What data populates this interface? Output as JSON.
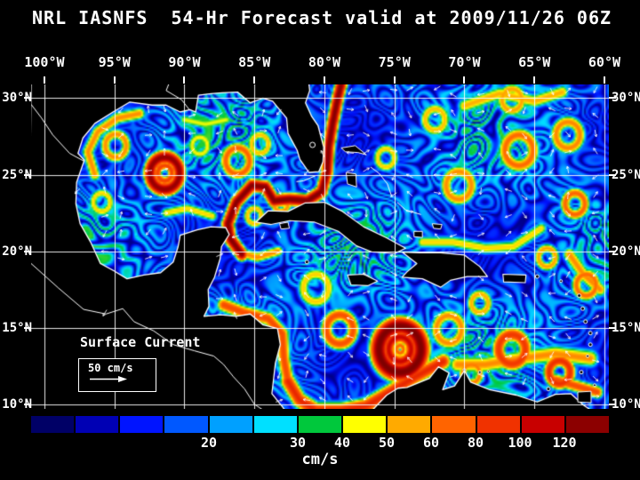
{
  "title": "NRL IASNFS  54-Hr Forecast valid at 2009/11/26 06Z",
  "axes": {
    "lon_labels": [
      "100°W",
      "95°W",
      "90°W",
      "85°W",
      "80°W",
      "75°W",
      "70°W",
      "65°W",
      "60°W"
    ],
    "lon_values": [
      -100,
      -95,
      -90,
      -85,
      -80,
      -75,
      -70,
      -65,
      -60
    ],
    "lat_labels": [
      "30°N",
      "25°N",
      "20°N",
      "15°N",
      "10°N"
    ],
    "lat_values": [
      30,
      25,
      20,
      15,
      10
    ]
  },
  "legend": {
    "label": "Surface Current",
    "scale_label": "50 cm/s"
  },
  "colorbar": {
    "unit": "cm/s",
    "segment_bounds": [
      0,
      5,
      10,
      15,
      20,
      25,
      30,
      40,
      50,
      60,
      80,
      100,
      120,
      135
    ],
    "segment_colors": [
      "#000066",
      "#0000B4",
      "#0014FF",
      "#0058FF",
      "#00A0FF",
      "#00E0FF",
      "#00C83C",
      "#FFFF00",
      "#FFAA00",
      "#FF6400",
      "#F03200",
      "#C80000",
      "#8C0000"
    ],
    "ticks": [
      {
        "label": "20",
        "bound_index": 4
      },
      {
        "label": "30",
        "bound_index": 6
      },
      {
        "label": "40",
        "bound_index": 7
      },
      {
        "label": "50",
        "bound_index": 8
      },
      {
        "label": "60",
        "bound_index": 9
      },
      {
        "label": "80",
        "bound_index": 10
      },
      {
        "label": "100",
        "bound_index": 11
      },
      {
        "label": "120",
        "bound_index": 12
      }
    ]
  },
  "map": {
    "land_color": "#000000",
    "coastline_color": "#FFFFFF",
    "grid_color": "#FFFFFF",
    "arrow_color": "#FFFFFF",
    "field_max_color": "#700000"
  }
}
